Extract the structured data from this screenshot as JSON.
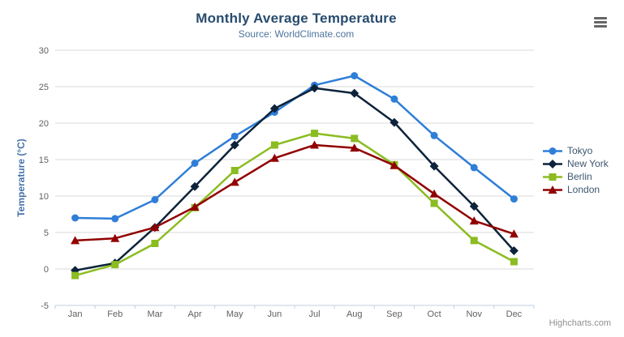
{
  "header": {
    "title": "Monthly Average Temperature",
    "subtitle": "Source: WorldClimate.com"
  },
  "credits": "Highcharts.com",
  "menu_icon": "hamburger-menu",
  "colors": {
    "title": "#274b6d",
    "subtitle": "#4d759e",
    "axis_label": "#606060",
    "axis_title": "#4572a7",
    "legend_text": "#3e576f",
    "gridline": "#d8d8d8",
    "axis_line": "#c0d0e0",
    "credits": "#909090",
    "menu_icon": "#666666",
    "background": "#ffffff"
  },
  "chart_data": {
    "type": "line",
    "title": "Monthly Average Temperature",
    "subtitle": "Source: WorldClimate.com",
    "categories": [
      "Jan",
      "Feb",
      "Mar",
      "Apr",
      "May",
      "Jun",
      "Jul",
      "Aug",
      "Sep",
      "Oct",
      "Nov",
      "Dec"
    ],
    "xlabel": "",
    "ylabel": "Temperature (°C)",
    "ylim": [
      -5,
      30
    ],
    "yticks": [
      -5,
      0,
      5,
      10,
      15,
      20,
      25,
      30
    ],
    "grid": true,
    "legend_position": "right",
    "series": [
      {
        "name": "Tokyo",
        "color": "#2f7ed8",
        "marker": "circle",
        "values": [
          7.0,
          6.9,
          9.5,
          14.5,
          18.2,
          21.5,
          25.2,
          26.5,
          23.3,
          18.3,
          13.9,
          9.6
        ]
      },
      {
        "name": "New York",
        "color": "#0d233a",
        "marker": "diamond",
        "values": [
          -0.2,
          0.8,
          5.7,
          11.3,
          17.0,
          22.0,
          24.8,
          24.1,
          20.1,
          14.1,
          8.6,
          2.5
        ]
      },
      {
        "name": "Berlin",
        "color": "#8bbc21",
        "marker": "square",
        "values": [
          -0.9,
          0.6,
          3.5,
          8.4,
          13.5,
          17.0,
          18.6,
          17.9,
          14.3,
          9.0,
          3.9,
          1.0
        ]
      },
      {
        "name": "London",
        "color": "#910000",
        "marker": "triangle",
        "values": [
          3.9,
          4.2,
          5.7,
          8.5,
          11.9,
          15.2,
          17.0,
          16.6,
          14.2,
          10.3,
          6.6,
          4.8
        ]
      }
    ]
  }
}
